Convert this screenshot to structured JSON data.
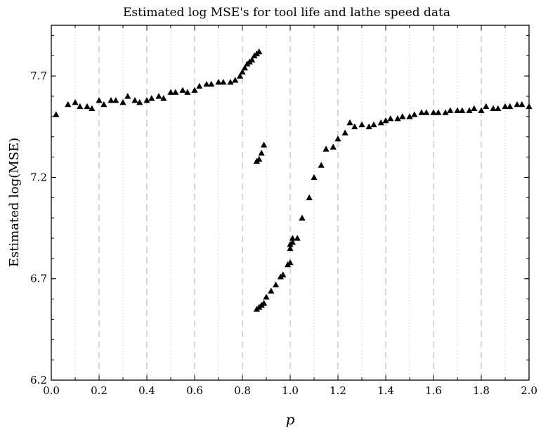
{
  "chart_data": {
    "type": "scatter",
    "title": "Estimated log MSE's for tool life and lathe speed data",
    "xlabel": "p",
    "ylabel": "Estimated log(MSE)",
    "xlim": [
      0.0,
      2.0
    ],
    "ylim": [
      6.2,
      7.95
    ],
    "xticks": [
      "0.0",
      "0.2",
      "0.4",
      "0.6",
      "0.8",
      "1.0",
      "1.2",
      "1.4",
      "1.6",
      "1.8",
      "2.0"
    ],
    "yticks": [
      "6.2",
      "6.7",
      "7.2",
      "7.7"
    ],
    "grid": "vertical dashed at major ticks, dotted at minor ticks",
    "marker": "triangle",
    "color": "#000000",
    "points": [
      [
        0.02,
        7.51
      ],
      [
        0.07,
        7.56
      ],
      [
        0.1,
        7.57
      ],
      [
        0.12,
        7.55
      ],
      [
        0.15,
        7.55
      ],
      [
        0.17,
        7.54
      ],
      [
        0.2,
        7.58
      ],
      [
        0.22,
        7.56
      ],
      [
        0.25,
        7.58
      ],
      [
        0.27,
        7.58
      ],
      [
        0.3,
        7.57
      ],
      [
        0.32,
        7.6
      ],
      [
        0.35,
        7.58
      ],
      [
        0.37,
        7.57
      ],
      [
        0.4,
        7.58
      ],
      [
        0.42,
        7.59
      ],
      [
        0.45,
        7.6
      ],
      [
        0.47,
        7.59
      ],
      [
        0.5,
        7.62
      ],
      [
        0.52,
        7.62
      ],
      [
        0.55,
        7.63
      ],
      [
        0.57,
        7.62
      ],
      [
        0.6,
        7.63
      ],
      [
        0.62,
        7.65
      ],
      [
        0.65,
        7.66
      ],
      [
        0.67,
        7.66
      ],
      [
        0.7,
        7.67
      ],
      [
        0.72,
        7.67
      ],
      [
        0.75,
        7.67
      ],
      [
        0.77,
        7.68
      ],
      [
        0.79,
        7.7
      ],
      [
        0.8,
        7.72
      ],
      [
        0.81,
        7.74
      ],
      [
        0.82,
        7.76
      ],
      [
        0.83,
        7.77
      ],
      [
        0.84,
        7.78
      ],
      [
        0.85,
        7.8
      ],
      [
        0.86,
        7.81
      ],
      [
        0.87,
        7.82
      ],
      [
        0.86,
        7.28
      ],
      [
        0.87,
        7.29
      ],
      [
        0.88,
        7.32
      ],
      [
        0.89,
        7.36
      ],
      [
        0.86,
        6.55
      ],
      [
        0.87,
        6.56
      ],
      [
        0.88,
        6.57
      ],
      [
        0.89,
        6.58
      ],
      [
        0.9,
        6.61
      ],
      [
        0.92,
        6.64
      ],
      [
        0.94,
        6.67
      ],
      [
        0.96,
        6.71
      ],
      [
        0.97,
        6.72
      ],
      [
        0.99,
        6.77
      ],
      [
        1.0,
        6.78
      ],
      [
        1.0,
        6.85
      ],
      [
        1.0,
        6.87
      ],
      [
        1.01,
        6.88
      ],
      [
        1.01,
        6.9
      ],
      [
        1.03,
        6.9
      ],
      [
        1.05,
        7.0
      ],
      [
        1.08,
        7.1
      ],
      [
        1.1,
        7.2
      ],
      [
        1.13,
        7.26
      ],
      [
        1.15,
        7.34
      ],
      [
        1.18,
        7.35
      ],
      [
        1.2,
        7.39
      ],
      [
        1.23,
        7.42
      ],
      [
        1.25,
        7.47
      ],
      [
        1.27,
        7.45
      ],
      [
        1.3,
        7.46
      ],
      [
        1.33,
        7.45
      ],
      [
        1.35,
        7.46
      ],
      [
        1.38,
        7.47
      ],
      [
        1.4,
        7.48
      ],
      [
        1.42,
        7.49
      ],
      [
        1.45,
        7.49
      ],
      [
        1.47,
        7.5
      ],
      [
        1.5,
        7.5
      ],
      [
        1.52,
        7.51
      ],
      [
        1.55,
        7.52
      ],
      [
        1.57,
        7.52
      ],
      [
        1.6,
        7.52
      ],
      [
        1.62,
        7.52
      ],
      [
        1.65,
        7.52
      ],
      [
        1.67,
        7.53
      ],
      [
        1.7,
        7.53
      ],
      [
        1.72,
        7.53
      ],
      [
        1.75,
        7.53
      ],
      [
        1.77,
        7.54
      ],
      [
        1.8,
        7.53
      ],
      [
        1.82,
        7.55
      ],
      [
        1.85,
        7.54
      ],
      [
        1.87,
        7.54
      ],
      [
        1.9,
        7.55
      ],
      [
        1.92,
        7.55
      ],
      [
        1.95,
        7.56
      ],
      [
        1.97,
        7.56
      ],
      [
        2.0,
        7.55
      ]
    ]
  }
}
